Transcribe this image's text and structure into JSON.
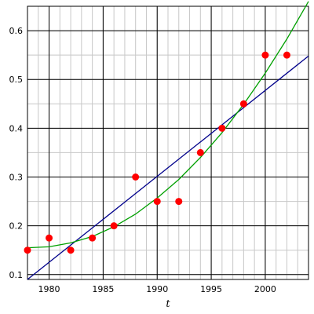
{
  "chart_data": {
    "type": "scatter",
    "title": "",
    "xlabel": "t",
    "ylabel": "",
    "xlim": [
      1978,
      2004
    ],
    "ylim": [
      0.09,
      0.65
    ],
    "x_ticks": [
      1980,
      1985,
      1990,
      1995,
      2000
    ],
    "x_tick_labels": [
      "1980",
      "1985",
      "1990",
      "1995",
      "2000"
    ],
    "y_ticks": [
      0.1,
      0.2,
      0.3,
      0.4,
      0.5,
      0.6
    ],
    "y_tick_labels": [
      "0.1",
      "0.2",
      "0.3",
      "0.4",
      "0.5",
      "0.6"
    ],
    "x_minor_step": 1,
    "y_minor_step": 0.05,
    "grid": true,
    "colors": {
      "points": "#ff0000",
      "linear_fit": "#00008b",
      "quadratic_fit": "#00a000",
      "grid_major": "#000000",
      "grid_minor": "#c8c8c8"
    },
    "points": [
      {
        "x": 1978,
        "y": 0.15
      },
      {
        "x": 1980,
        "y": 0.175
      },
      {
        "x": 1982,
        "y": 0.15
      },
      {
        "x": 1984,
        "y": 0.175
      },
      {
        "x": 1986,
        "y": 0.2
      },
      {
        "x": 1988,
        "y": 0.3
      },
      {
        "x": 1990,
        "y": 0.25
      },
      {
        "x": 1992,
        "y": 0.25
      },
      {
        "x": 1994,
        "y": 0.35
      },
      {
        "x": 1996,
        "y": 0.4
      },
      {
        "x": 1998,
        "y": 0.45
      },
      {
        "x": 2000,
        "y": 0.55
      },
      {
        "x": 2002,
        "y": 0.55
      }
    ],
    "series": [
      {
        "kind": "linear_fit",
        "x": [
          1978,
          2004
        ],
        "y": [
          0.09,
          0.548
        ]
      },
      {
        "kind": "quadratic_fit",
        "x": [
          1978,
          1980,
          1982,
          1984,
          1986,
          1988,
          1990,
          1992,
          1994,
          1996,
          1998,
          2000,
          2002,
          2004
        ],
        "y": [
          0.155,
          0.157,
          0.165,
          0.178,
          0.198,
          0.224,
          0.257,
          0.295,
          0.34,
          0.391,
          0.449,
          0.513,
          0.583,
          0.66
        ]
      }
    ]
  }
}
